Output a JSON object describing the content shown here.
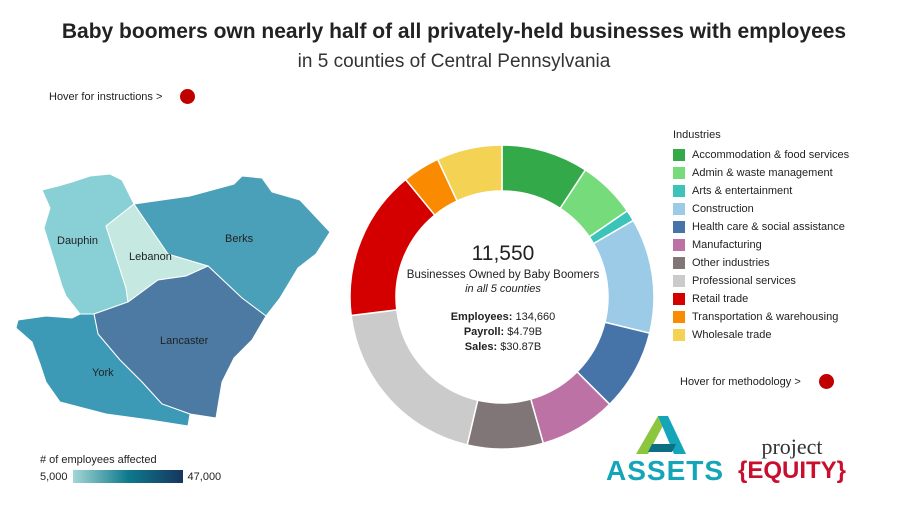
{
  "header": {
    "title": "Baby boomers own nearly half of all privately-held businesses with employees",
    "subtitle": "in 5 counties of Central Pennsylvania"
  },
  "links": {
    "instructions": "Hover for instructions >",
    "methodology": "Hover for methodology >"
  },
  "colors": {
    "hover_dot": "#c00000"
  },
  "map": {
    "counties": [
      {
        "name": "Dauphin",
        "fill": "#88cfd6"
      },
      {
        "name": "Lebanon",
        "fill": "#c5e9e1"
      },
      {
        "name": "Berks",
        "fill": "#4aa0b8"
      },
      {
        "name": "Lancaster",
        "fill": "#4c7aa3"
      },
      {
        "name": "York",
        "fill": "#3d9ab6"
      }
    ],
    "color_legend": {
      "title": "# of employees affected",
      "min_label": "5,000",
      "max_label": "47,000",
      "colors": [
        "#a3d6d6",
        "#0e7a8c",
        "#17355e"
      ]
    }
  },
  "chart_data": {
    "type": "pie",
    "style": "donut",
    "title": "",
    "legend_title": "Industries",
    "legend_position": "right",
    "categories": [
      "Accommodation & food services",
      "Admin & waste management",
      "Arts & entertainment",
      "Construction",
      "Health care & social assistance",
      "Manufacturing",
      "Other industries",
      "Professional services",
      "Retail trade",
      "Transportation & warehousing",
      "Wholesale trade"
    ],
    "values": [
      9.3,
      6.2,
      1.2,
      12.3,
      8.7,
      8.2,
      8.1,
      19.5,
      16.1,
      4.0,
      7.0
    ],
    "unit": "percent of businesses",
    "colors": [
      "#34a94a",
      "#76db7a",
      "#3cc4ba",
      "#9ccbe8",
      "#4674a8",
      "#bd72a6",
      "#807677",
      "#cbcbcb",
      "#d40000",
      "#fa8a00",
      "#f4d254"
    ],
    "center": {
      "total": "11,550",
      "line1": "Businesses Owned by Baby Boomers",
      "line2": "in all 5 counties",
      "employees_label": "Employees:",
      "employees_value": "134,660",
      "payroll_label": "Payroll:",
      "payroll_value": "$4.79B",
      "sales_label": "Sales:",
      "sales_value": "$30.87B"
    }
  },
  "logos": {
    "assets": "ASSETS",
    "project_top": "project",
    "project_bottom": "{EQUITY}"
  }
}
